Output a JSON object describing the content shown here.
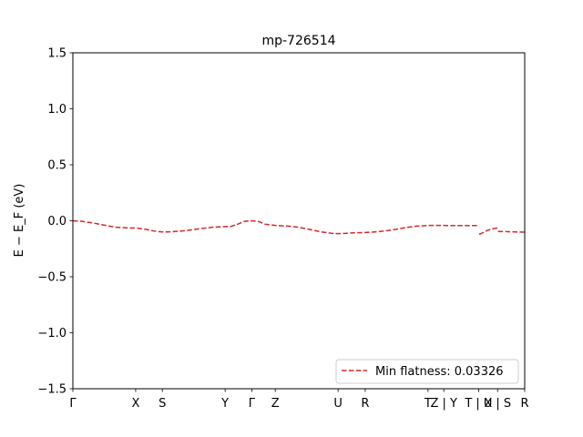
{
  "chart_data": {
    "type": "line",
    "title": "mp-726514",
    "ylabel": "E − E_F (eV)",
    "xlabel": "",
    "ylim": [
      -1.5,
      1.5
    ],
    "y_ticks": [
      -1.5,
      -1.0,
      -0.5,
      0.0,
      0.5,
      1.0,
      1.5
    ],
    "y_tick_labels": [
      "−1.5",
      "−1.0",
      "−0.5",
      "0.0",
      "0.5",
      "1.0",
      "1.5"
    ],
    "xlim": [
      0,
      1
    ],
    "x_ticks": [
      {
        "pos": 0.0,
        "label": "Γ"
      },
      {
        "pos": 0.139,
        "label": "X"
      },
      {
        "pos": 0.198,
        "label": "S"
      },
      {
        "pos": 0.337,
        "label": "Y"
      },
      {
        "pos": 0.396,
        "label": "Γ"
      },
      {
        "pos": 0.448,
        "label": "Z"
      },
      {
        "pos": 0.587,
        "label": "U"
      },
      {
        "pos": 0.647,
        "label": "R"
      },
      {
        "pos": 0.786,
        "label": "T"
      },
      {
        "pos": 0.821,
        "label": "Z | Y"
      },
      {
        "pos": 0.898,
        "label": "T | U"
      },
      {
        "pos": 0.94,
        "label": "X | S"
      },
      {
        "pos": 1.0,
        "label": "R"
      }
    ],
    "grid": false,
    "legend_position": "lower-right",
    "series": [
      {
        "name": "Min flatness: 0.03326",
        "color": "#d62728",
        "style": "dashed",
        "segments": [
          [
            [
              0.0,
              0.0
            ],
            [
              0.02,
              -0.005
            ],
            [
              0.045,
              -0.02
            ],
            [
              0.07,
              -0.04
            ],
            [
              0.095,
              -0.058
            ],
            [
              0.12,
              -0.063
            ],
            [
              0.139,
              -0.065
            ],
            [
              0.16,
              -0.075
            ],
            [
              0.18,
              -0.092
            ],
            [
              0.198,
              -0.1
            ],
            [
              0.22,
              -0.098
            ],
            [
              0.25,
              -0.088
            ],
            [
              0.28,
              -0.072
            ],
            [
              0.31,
              -0.057
            ],
            [
              0.337,
              -0.052
            ],
            [
              0.35,
              -0.05
            ],
            [
              0.365,
              -0.03
            ],
            [
              0.38,
              -0.005
            ],
            [
              0.396,
              0.0
            ],
            [
              0.41,
              -0.005
            ],
            [
              0.425,
              -0.03
            ],
            [
              0.448,
              -0.042
            ],
            [
              0.475,
              -0.047
            ],
            [
              0.5,
              -0.058
            ],
            [
              0.525,
              -0.078
            ],
            [
              0.55,
              -0.1
            ],
            [
              0.575,
              -0.113
            ],
            [
              0.587,
              -0.115
            ],
            [
              0.605,
              -0.112
            ],
            [
              0.625,
              -0.107
            ],
            [
              0.647,
              -0.105
            ],
            [
              0.675,
              -0.098
            ],
            [
              0.705,
              -0.083
            ],
            [
              0.735,
              -0.062
            ],
            [
              0.76,
              -0.048
            ],
            [
              0.786,
              -0.042
            ],
            [
              0.821,
              -0.042
            ],
            [
              0.86,
              -0.043
            ],
            [
              0.898,
              -0.043
            ]
          ],
          [
            [
              0.899,
              -0.12
            ],
            [
              0.905,
              -0.112
            ],
            [
              0.915,
              -0.09
            ],
            [
              0.928,
              -0.072
            ],
            [
              0.94,
              -0.065
            ]
          ],
          [
            [
              0.941,
              -0.095
            ],
            [
              0.96,
              -0.097
            ],
            [
              0.98,
              -0.1
            ],
            [
              1.0,
              -0.102
            ]
          ]
        ]
      }
    ]
  }
}
